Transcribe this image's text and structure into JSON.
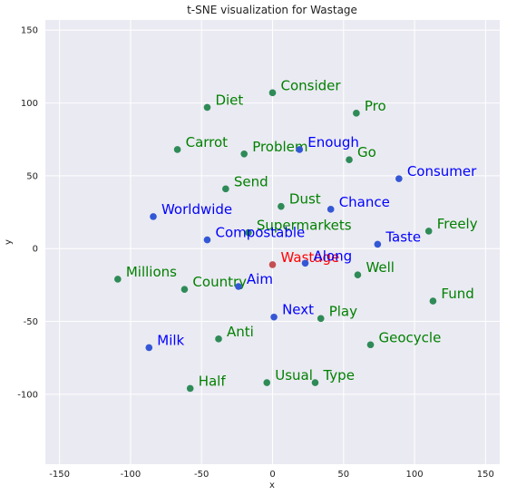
{
  "chart_data": {
    "type": "scatter",
    "title": "t-SNE visualization for Wastage",
    "xlabel": "x",
    "ylabel": "y",
    "xlim": [
      -160,
      160
    ],
    "ylim": [
      -148,
      157
    ],
    "xticks": [
      -150,
      -100,
      -50,
      0,
      50,
      100,
      150
    ],
    "yticks": [
      -100,
      -50,
      0,
      50,
      100,
      150
    ],
    "grid": true,
    "background": "#eaeaf2",
    "legend": "none",
    "colors": {
      "center": "#ff0000",
      "blue": "#0000ff",
      "green": "#008000",
      "marker_blue": "#3457d5",
      "marker_green": "#2e8b57",
      "marker_red": "#c44e52"
    },
    "points": [
      {
        "word": "Wastage",
        "x": 0,
        "y": -11,
        "group": "center"
      },
      {
        "word": "Consider",
        "x": 0,
        "y": 107,
        "group": "green"
      },
      {
        "word": "Diet",
        "x": -46,
        "y": 97,
        "group": "green"
      },
      {
        "word": "Pro",
        "x": 59,
        "y": 93,
        "group": "green"
      },
      {
        "word": "Carrot",
        "x": -67,
        "y": 68,
        "group": "green"
      },
      {
        "word": "Problem",
        "x": -20,
        "y": 65,
        "group": "green"
      },
      {
        "word": "Enough",
        "x": 19,
        "y": 68,
        "group": "blue"
      },
      {
        "word": "Go",
        "x": 54,
        "y": 61,
        "group": "green"
      },
      {
        "word": "Consumer",
        "x": 89,
        "y": 48,
        "group": "blue"
      },
      {
        "word": "Send",
        "x": -33,
        "y": 41,
        "group": "green"
      },
      {
        "word": "Dust",
        "x": 6,
        "y": 29,
        "group": "green"
      },
      {
        "word": "Chance",
        "x": 41,
        "y": 27,
        "group": "blue"
      },
      {
        "word": "Worldwide",
        "x": -84,
        "y": 22,
        "group": "blue"
      },
      {
        "word": "Supermarkets",
        "x": -17,
        "y": 11,
        "group": "green"
      },
      {
        "word": "Freely",
        "x": 110,
        "y": 12,
        "group": "green"
      },
      {
        "word": "Compostable",
        "x": -46,
        "y": 6,
        "group": "blue"
      },
      {
        "word": "Taste",
        "x": 74,
        "y": 3,
        "group": "blue"
      },
      {
        "word": "Along",
        "x": 23,
        "y": -10,
        "group": "blue"
      },
      {
        "word": "Millions",
        "x": -109,
        "y": -21,
        "group": "green"
      },
      {
        "word": "Well",
        "x": 60,
        "y": -18,
        "group": "green"
      },
      {
        "word": "Country",
        "x": -62,
        "y": -28,
        "group": "green"
      },
      {
        "word": "Aim",
        "x": -24,
        "y": -26,
        "group": "blue"
      },
      {
        "word": "Fund",
        "x": 113,
        "y": -36,
        "group": "green"
      },
      {
        "word": "Next",
        "x": 1,
        "y": -47,
        "group": "blue"
      },
      {
        "word": "Play",
        "x": 34,
        "y": -48,
        "group": "green"
      },
      {
        "word": "Anti",
        "x": -38,
        "y": -62,
        "group": "green"
      },
      {
        "word": "Milk",
        "x": -87,
        "y": -68,
        "group": "blue"
      },
      {
        "word": "Geocycle",
        "x": 69,
        "y": -66,
        "group": "green"
      },
      {
        "word": "Usual",
        "x": -4,
        "y": -92,
        "group": "green"
      },
      {
        "word": "Type",
        "x": 30,
        "y": -92,
        "group": "green"
      },
      {
        "word": "Half",
        "x": -58,
        "y": -96,
        "group": "green"
      }
    ]
  }
}
